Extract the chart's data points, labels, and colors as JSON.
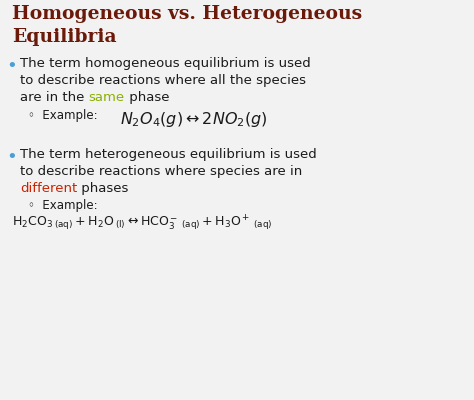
{
  "bg_color": "#f2f2f2",
  "title_line1": "Homogeneous vs. Heterogeneous",
  "title_line2": "Equilibria",
  "title_color": "#6b1a0a",
  "bullet_color": "#4a9fd4",
  "text_color": "#1a1a1a",
  "same_color": "#8ab000",
  "different_color": "#cc2200",
  "bullet1_line1": "The term homogeneous equilibrium is used",
  "bullet1_line2": "to describe reactions where all the species",
  "bullet1_line3_pre": "are in the ",
  "bullet1_line3_word": "same",
  "bullet1_line3_post": " phase",
  "example1_label": "◦  Example:",
  "example1_formula": "$\\mathit{N}_2\\mathit{O}_4(\\mathit{g}) \\leftrightarrow 2\\mathit{N}\\mathit{O}_2(\\mathit{g})$",
  "bullet2_line1": "The term heterogeneous equilibrium is used",
  "bullet2_line2": "to describe reactions where species are in",
  "bullet2_line3_word": "different",
  "bullet2_line3_post": " phases",
  "example2_label": "◦  Example:",
  "example2_formula": "$\\mathrm{H_2CO_3}\\,_{\\mathrm{(aq)}} + \\mathrm{H_2O}\\,_{\\mathrm{(l)}} \\leftrightarrow \\mathrm{HCO_3^-}\\,_{\\mathrm{(aq)}} + \\mathrm{H_3O^+}\\,_{\\mathrm{(aq)}}$"
}
